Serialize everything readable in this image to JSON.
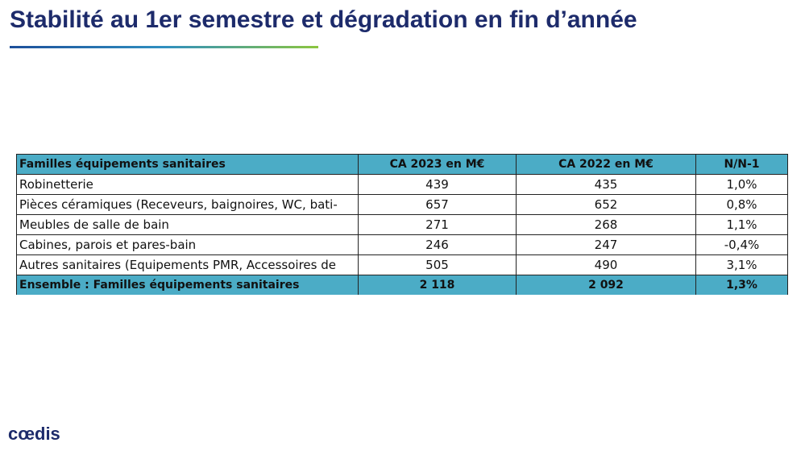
{
  "header": {
    "title": "Stabilité au 1er semestre et dégradation en fin d’année"
  },
  "table": {
    "columns": [
      "Familles équipements sanitaires",
      "CA 2023 en M€",
      "CA 2022 en M€",
      "N/N-1"
    ],
    "rows": [
      [
        "Robinetterie",
        "439",
        "435",
        "1,0%"
      ],
      [
        "Pièces céramiques (Receveurs, baignoires, WC, bati-",
        "657",
        "652",
        "0,8%"
      ],
      [
        "Meubles de salle de bain",
        "271",
        "268",
        "1,1%"
      ],
      [
        "Cabines, parois et pares-bain",
        "246",
        "247",
        "-0,4%"
      ],
      [
        "Autres sanitaires (Equipements PMR, Accessoires de",
        "505",
        "490",
        "3,1%"
      ]
    ],
    "total": [
      "Ensemble : Familles équipements sanitaires",
      "2 118",
      "2 092",
      "1,3%"
    ]
  },
  "footer": {
    "logo": "cœdis"
  }
}
